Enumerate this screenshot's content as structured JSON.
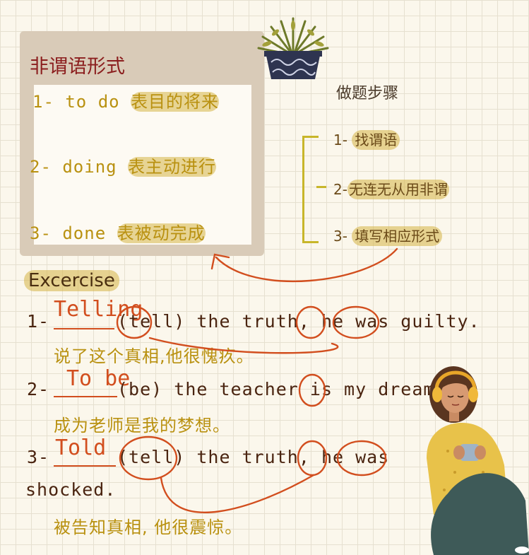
{
  "card": {
    "title": "非谓语形式",
    "items": [
      {
        "num": "1-",
        "form": "to do",
        "meaning": "表目的将来"
      },
      {
        "num": "2-",
        "form": "doing",
        "meaning": "表主动进行"
      },
      {
        "num": "3-",
        "form": "done",
        "meaning": "表被动完成"
      }
    ]
  },
  "steps": {
    "title": "做题步骤",
    "items": [
      {
        "num": "1-",
        "text": "找谓语"
      },
      {
        "num": "2-",
        "text": "无连无从用非谓"
      },
      {
        "num": "3-",
        "text": "填写相应形式"
      }
    ]
  },
  "exercise": {
    "title": "Excercise",
    "items": [
      {
        "num": "1-",
        "answer": "Telling",
        "hint": "(tell)",
        "rest": "the truth, he was guilty.",
        "translation": "说了这个真相,他很愧疚。"
      },
      {
        "num": "2-",
        "answer": "To be",
        "hint": "(be)",
        "rest": "the teacher is my dream.",
        "translation": "成为老师是我的梦想。"
      },
      {
        "num": "3-",
        "answer": "Told",
        "hint": "(tell)",
        "rest": "the truth, he was",
        "rest2": "shocked.",
        "translation": "被告知真相, 他很震惊。"
      }
    ]
  },
  "colors": {
    "title_red": "#8b1e1e",
    "mustard": "#b99110",
    "highlight": "#d6b446",
    "ink": "#4a2410",
    "pen_orange": "#d24e1e",
    "card_bg": "#d9cbb8"
  }
}
